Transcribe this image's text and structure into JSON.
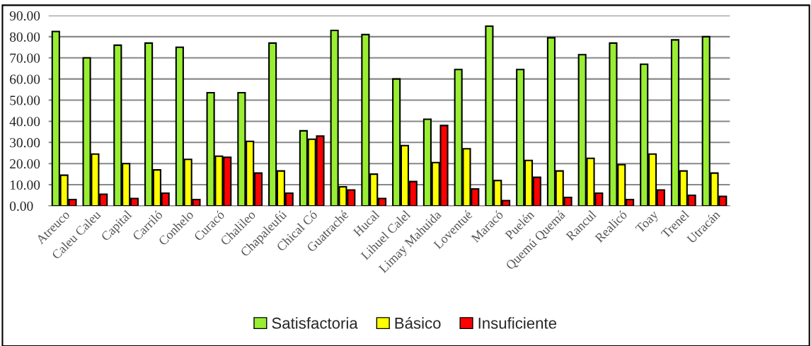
{
  "chart_data": {
    "type": "bar",
    "categories": [
      "Atreuco",
      "Caleu Caleu",
      "Capital",
      "Carriló",
      "Conhelo",
      "Curacó",
      "Chalileo",
      "Chapaleufú",
      "Chical Có",
      "Guatraché",
      "Hucal",
      "Lihuel Calel",
      "Limay Mahuida",
      "Loventué",
      "Maracó",
      "Puelén",
      "Quemú Quemá",
      "Rancul",
      "Realicó",
      "Toay",
      "Trenel",
      "Utracán"
    ],
    "series": [
      {
        "name": "Satisfactoria",
        "color": "#99ee33",
        "values": [
          82.5,
          70,
          76,
          77,
          75,
          53.5,
          53.5,
          77,
          35.5,
          83,
          81,
          60,
          41,
          64.5,
          85,
          64.5,
          79.5,
          71.5,
          77,
          67,
          78.5,
          80
        ]
      },
      {
        "name": "Básico",
        "color": "#ffff00",
        "values": [
          14.5,
          24.5,
          20,
          17,
          22,
          23.5,
          30.5,
          16.5,
          31.5,
          9,
          15,
          28.5,
          20.5,
          27,
          12,
          21.5,
          16.5,
          22.5,
          19.5,
          24.5,
          16.5,
          15.5
        ]
      },
      {
        "name": "Insuficiente",
        "color": "#ff0000",
        "values": [
          3,
          5.5,
          3.5,
          6,
          3,
          23,
          15.5,
          6,
          33,
          7.5,
          3.5,
          11.5,
          38,
          8,
          2.5,
          13.5,
          4,
          6,
          3,
          7.5,
          5,
          4.5
        ]
      }
    ],
    "ylim": [
      0,
      90
    ],
    "yticks": [
      {
        "value": 0,
        "label": "0.00"
      },
      {
        "value": 10,
        "label": "10.00"
      },
      {
        "value": 20,
        "label": "20.00"
      },
      {
        "value": 30,
        "label": "30.00"
      },
      {
        "value": 40,
        "label": "40.00"
      },
      {
        "value": 50,
        "label": "50.00"
      },
      {
        "value": 60,
        "label": "60.00"
      },
      {
        "value": 70,
        "label": "70.00"
      },
      {
        "value": 80,
        "label": "80.00"
      },
      {
        "value": 90,
        "label": "90.00"
      }
    ],
    "grid": "y",
    "legend": "bottom"
  }
}
